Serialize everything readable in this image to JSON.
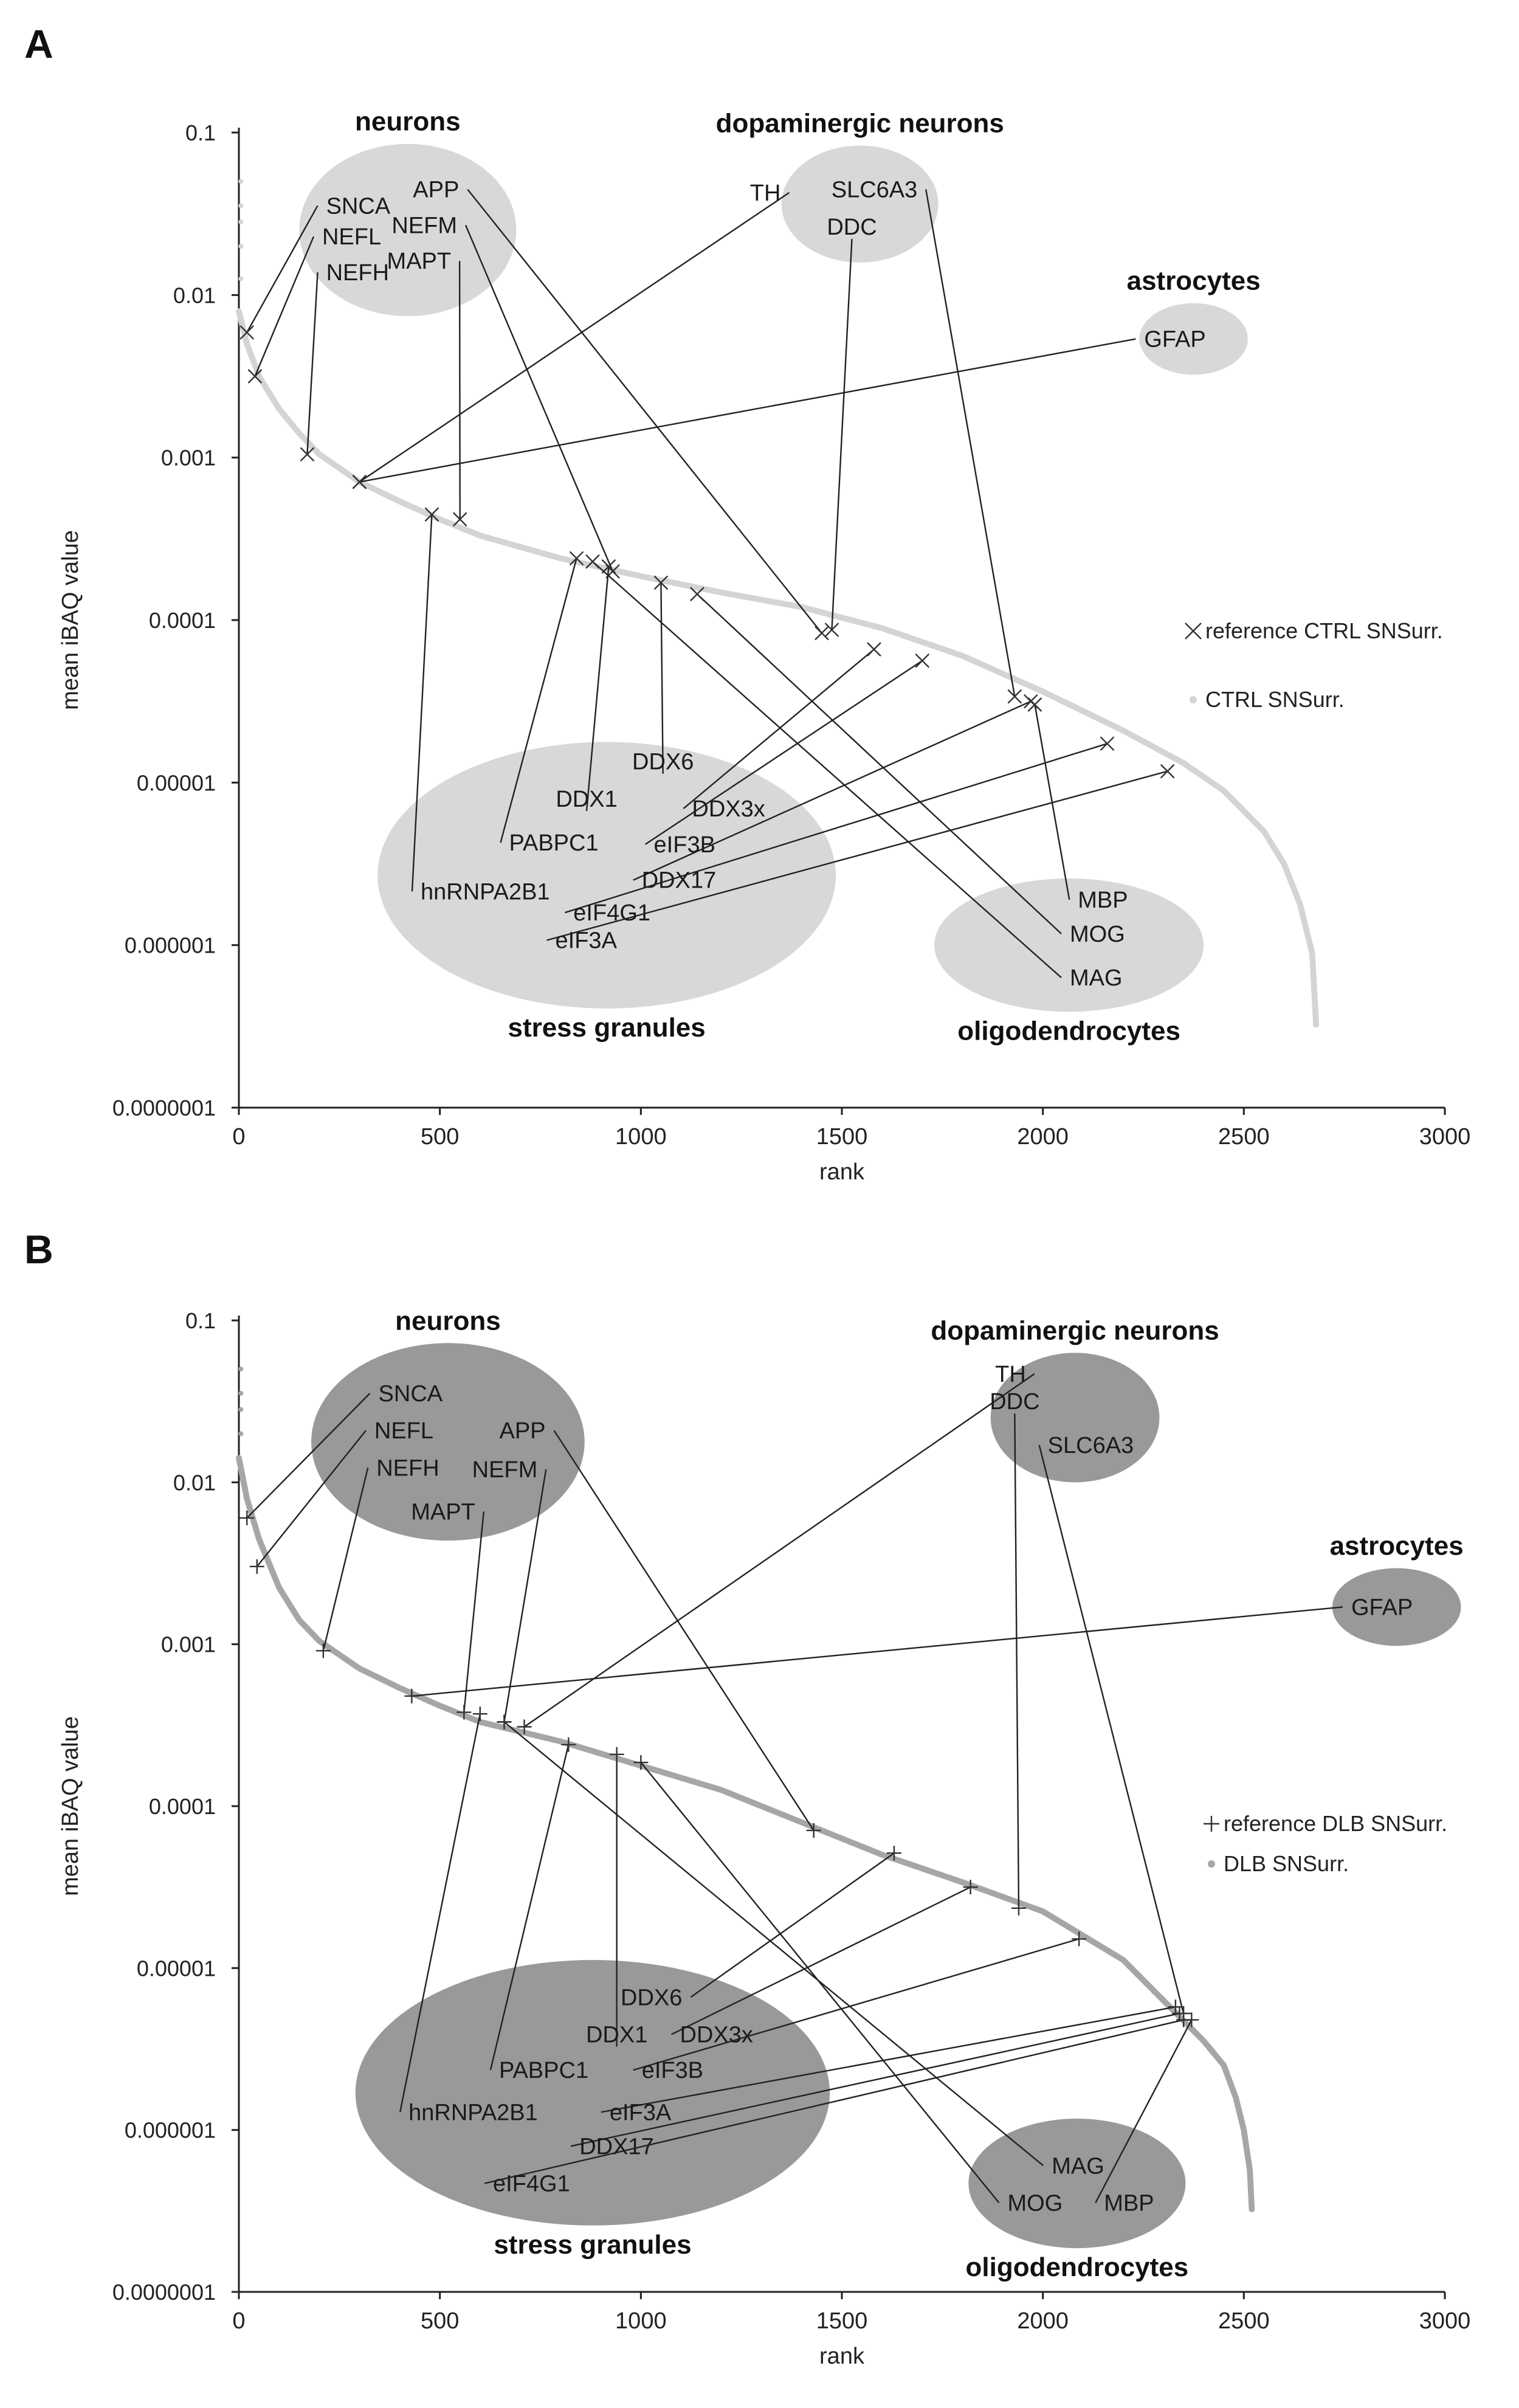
{
  "chart_data": [
    {
      "panel": "A",
      "type": "scatter",
      "xlabel": "rank",
      "ylabel": "mean iBAQ value",
      "xlim": [
        0,
        3000
      ],
      "xticks": [
        0,
        500,
        1000,
        1500,
        2000,
        2500,
        3000
      ],
      "ylim_log10": [
        -7,
        -1
      ],
      "yticks": [
        "0.1",
        "0.01",
        "0.001",
        "0.0001",
        "0.00001",
        "0.000001",
        "0.0000001"
      ],
      "legend": [
        "reference CTRL SNSurr.",
        "CTRL SNSurr."
      ],
      "legend_position": "right",
      "colors": {
        "curve": "#d4d4d4",
        "cluster": "#d8d8d8",
        "line": "#222222"
      },
      "curve": {
        "name": "CTRL SNSurr.",
        "rank": [
          0,
          20,
          50,
          100,
          150,
          200,
          300,
          400,
          500,
          600,
          800,
          1000,
          1200,
          1400,
          1600,
          1800,
          2000,
          2200,
          2350,
          2450,
          2550,
          2600,
          2640,
          2670,
          2680
        ],
        "log10": [
          -2.1,
          -2.3,
          -2.5,
          -2.7,
          -2.85,
          -2.98,
          -3.15,
          -3.27,
          -3.38,
          -3.48,
          -3.62,
          -3.73,
          -3.83,
          -3.92,
          -4.05,
          -4.22,
          -4.44,
          -4.68,
          -4.88,
          -5.05,
          -5.3,
          -5.5,
          -5.75,
          -6.05,
          -6.5
        ]
      },
      "clusters": [
        {
          "title": "neurons",
          "cx": 420,
          "cy": -1.6,
          "rx": 270,
          "ry": 0.53
        },
        {
          "title": "dopaminergic neurons",
          "cx": 1545,
          "cy": -1.44,
          "rx": 195,
          "ry": 0.36
        },
        {
          "title": "astrocytes",
          "cx": 2375,
          "cy": -2.27,
          "rx": 135,
          "ry": 0.22
        },
        {
          "title": "stress granules",
          "cx": 915,
          "cy": -5.57,
          "rx": 570,
          "ry": 0.82
        },
        {
          "title": "oligodendrocytes",
          "cx": 2065,
          "cy": -6.0,
          "rx": 335,
          "ry": 0.41
        }
      ],
      "proteins": [
        {
          "name": "SNCA",
          "label_rank": 205,
          "label_log10": -1.45,
          "anchor": "start",
          "rank": 20,
          "log10": -2.23
        },
        {
          "name": "NEFL",
          "label_rank": 195,
          "label_log10": -1.64,
          "anchor": "start",
          "rank": 40,
          "log10": -2.5
        },
        {
          "name": "NEFH",
          "label_rank": 205,
          "label_log10": -1.86,
          "anchor": "start",
          "rank": 170,
          "log10": -2.98
        },
        {
          "name": "APP",
          "label_rank": 560,
          "label_log10": -1.35,
          "anchor": "end",
          "rank": 1450,
          "log10": -4.08
        },
        {
          "name": "NEFM",
          "label_rank": 555,
          "label_log10": -1.57,
          "anchor": "end",
          "rank": 930,
          "log10": -3.7
        },
        {
          "name": "MAPT",
          "label_rank": 540,
          "label_log10": -1.79,
          "anchor": "end",
          "rank": 550,
          "log10": -3.38
        },
        {
          "name": "TH",
          "label_rank": 1360,
          "label_log10": -1.37,
          "anchor": "end",
          "rank": 300,
          "log10": -3.15
        },
        {
          "name": "DDC",
          "label_rank": 1525,
          "label_log10": -1.58,
          "anchor": "middle",
          "rank": 1475,
          "log10": -4.06
        },
        {
          "name": "SLC6A3",
          "label_rank": 1700,
          "label_log10": -1.35,
          "anchor": "end",
          "rank": 1930,
          "log10": -4.47
        },
        {
          "name": "GFAP",
          "label_rank": 2240,
          "label_log10": -2.27,
          "anchor": "start",
          "rank": 300,
          "log10": -3.15
        },
        {
          "name": "DDX6",
          "label_rank": 1055,
          "label_log10": -4.87,
          "anchor": "middle",
          "rank": 1050,
          "log10": -3.77
        },
        {
          "name": "DDX1",
          "label_rank": 865,
          "label_log10": -5.1,
          "anchor": "middle",
          "rank": 920,
          "log10": -3.67
        },
        {
          "name": "DDX3x",
          "label_rank": 1115,
          "label_log10": -5.16,
          "anchor": "start",
          "rank": 1580,
          "log10": -4.18
        },
        {
          "name": "PABPC1",
          "label_rank": 660,
          "label_log10": -5.37,
          "anchor": "start",
          "rank": 840,
          "log10": -3.62
        },
        {
          "name": "eIF3B",
          "label_rank": 1020,
          "label_log10": -5.38,
          "anchor": "start",
          "rank": 1700,
          "log10": -4.25
        },
        {
          "name": "hnRNPA2B1",
          "label_rank": 440,
          "label_log10": -5.67,
          "anchor": "start",
          "rank": 480,
          "log10": -3.35
        },
        {
          "name": "DDX17",
          "label_rank": 990,
          "label_log10": -5.6,
          "anchor": "start",
          "rank": 1970,
          "log10": -4.5
        },
        {
          "name": "eIF4G1",
          "label_rank": 820,
          "label_log10": -5.8,
          "anchor": "start",
          "rank": 2160,
          "log10": -4.76
        },
        {
          "name": "eIF3A",
          "label_rank": 775,
          "label_log10": -5.97,
          "anchor": "start",
          "rank": 2310,
          "log10": -4.93
        },
        {
          "name": "MBP",
          "label_rank": 2075,
          "label_log10": -5.72,
          "anchor": "start",
          "rank": 1980,
          "log10": -4.52
        },
        {
          "name": "MOG",
          "label_rank": 2055,
          "label_log10": -5.93,
          "anchor": "start",
          "rank": 1140,
          "log10": -3.84
        },
        {
          "name": "MAG",
          "label_rank": 2055,
          "label_log10": -6.2,
          "anchor": "start",
          "rank": 880,
          "log10": -3.64
        }
      ]
    },
    {
      "panel": "B",
      "type": "scatter",
      "xlabel": "rank",
      "ylabel": "mean iBAQ value",
      "xlim": [
        0,
        3000
      ],
      "xticks": [
        0,
        500,
        1000,
        1500,
        2000,
        2500,
        3000
      ],
      "ylim_log10": [
        -7,
        -1
      ],
      "yticks": [
        "0.1",
        "0.01",
        "0.001",
        "0.0001",
        "0.00001",
        "0.000001",
        "0.0000001"
      ],
      "legend": [
        "reference DLB SNSurr.",
        "DLB SNSurr."
      ],
      "legend_position": "right",
      "colors": {
        "curve": "#a6a6a6",
        "cluster": "#999999",
        "line": "#222222"
      },
      "curve": {
        "name": "DLB SNSurr.",
        "rank": [
          0,
          20,
          50,
          100,
          150,
          200,
          300,
          400,
          500,
          600,
          800,
          1000,
          1200,
          1400,
          1600,
          1800,
          2000,
          2200,
          2300,
          2400,
          2450,
          2480,
          2500,
          2515,
          2520
        ],
        "log10": [
          -1.85,
          -2.1,
          -2.35,
          -2.65,
          -2.85,
          -2.98,
          -3.15,
          -3.27,
          -3.38,
          -3.48,
          -3.6,
          -3.75,
          -3.9,
          -4.1,
          -4.3,
          -4.47,
          -4.65,
          -4.95,
          -5.2,
          -5.45,
          -5.6,
          -5.8,
          -6.0,
          -6.25,
          -6.5
        ]
      },
      "clusters": [
        {
          "title": "neurons",
          "cx": 520,
          "cy": -1.75,
          "rx": 340,
          "ry": 0.61
        },
        {
          "title": "dopaminergic neurons",
          "cx": 2080,
          "cy": -1.6,
          "rx": 210,
          "ry": 0.4
        },
        {
          "title": "astrocytes",
          "cx": 2880,
          "cy": -2.77,
          "rx": 160,
          "ry": 0.24
        },
        {
          "title": "stress granules",
          "cx": 880,
          "cy": -5.77,
          "rx": 590,
          "ry": 0.82
        },
        {
          "title": "oligodendrocytes",
          "cx": 2085,
          "cy": -6.33,
          "rx": 270,
          "ry": 0.4
        }
      ],
      "proteins": [
        {
          "name": "SNCA",
          "label_rank": 335,
          "label_log10": -1.45,
          "anchor": "start",
          "rank": 20,
          "log10": -2.22
        },
        {
          "name": "NEFL",
          "label_rank": 325,
          "label_log10": -1.68,
          "anchor": "start",
          "rank": 45,
          "log10": -2.52
        },
        {
          "name": "NEFH",
          "label_rank": 330,
          "label_log10": -1.91,
          "anchor": "start",
          "rank": 210,
          "log10": -3.04
        },
        {
          "name": "APP",
          "label_rank": 775,
          "label_log10": -1.68,
          "anchor": "end",
          "rank": 1430,
          "log10": -4.15
        },
        {
          "name": "NEFM",
          "label_rank": 755,
          "label_log10": -1.92,
          "anchor": "end",
          "rank": 660,
          "log10": -3.48
        },
        {
          "name": "MAPT",
          "label_rank": 600,
          "label_log10": -2.18,
          "anchor": "end",
          "rank": 560,
          "log10": -3.42
        },
        {
          "name": "TH",
          "label_rank": 1970,
          "label_log10": -1.33,
          "anchor": "end",
          "rank": 710,
          "log10": -3.51
        },
        {
          "name": "DDC",
          "label_rank": 1930,
          "label_log10": -1.5,
          "anchor": "middle",
          "rank": 1940,
          "log10": -4.63
        },
        {
          "name": "SLC6A3",
          "label_rank": 2000,
          "label_log10": -1.77,
          "anchor": "start",
          "rank": 2350,
          "log10": -5.28
        },
        {
          "name": "GFAP",
          "label_rank": 2755,
          "label_log10": -2.77,
          "anchor": "start",
          "rank": 430,
          "log10": -3.32
        },
        {
          "name": "DDX6",
          "label_rank": 1115,
          "label_log10": -5.18,
          "anchor": "end",
          "rank": 1630,
          "log10": -4.29
        },
        {
          "name": "DDX1",
          "label_rank": 940,
          "label_log10": -5.41,
          "anchor": "middle",
          "rank": 940,
          "log10": -3.68
        },
        {
          "name": "DDX3x",
          "label_rank": 1085,
          "label_log10": -5.41,
          "anchor": "start",
          "rank": 1820,
          "log10": -4.5
        },
        {
          "name": "PABPC1",
          "label_rank": 635,
          "label_log10": -5.63,
          "anchor": "start",
          "rank": 820,
          "log10": -3.62
        },
        {
          "name": "eIF3B",
          "label_rank": 990,
          "label_log10": -5.63,
          "anchor": "start",
          "rank": 2090,
          "log10": -4.82
        },
        {
          "name": "hnRNPA2B1",
          "label_rank": 410,
          "label_log10": -5.89,
          "anchor": "start",
          "rank": 600,
          "log10": -3.43
        },
        {
          "name": "eIF3A",
          "label_rank": 910,
          "label_log10": -5.89,
          "anchor": "start",
          "rank": 2330,
          "log10": -5.24
        },
        {
          "name": "DDX17",
          "label_rank": 835,
          "label_log10": -6.1,
          "anchor": "start",
          "rank": 2340,
          "log10": -5.28
        },
        {
          "name": "eIF4G1",
          "label_rank": 620,
          "label_log10": -6.33,
          "anchor": "start",
          "rank": 2350,
          "log10": -5.32
        },
        {
          "name": "MAG",
          "label_rank": 2010,
          "label_log10": -6.22,
          "anchor": "start",
          "rank": 660,
          "log10": -3.48
        },
        {
          "name": "MOG",
          "label_rank": 1900,
          "label_log10": -6.45,
          "anchor": "start",
          "rank": 1000,
          "log10": -3.73
        },
        {
          "name": "MBP",
          "label_rank": 2140,
          "label_log10": -6.45,
          "anchor": "start",
          "rank": 2370,
          "log10": -5.32
        }
      ]
    }
  ]
}
